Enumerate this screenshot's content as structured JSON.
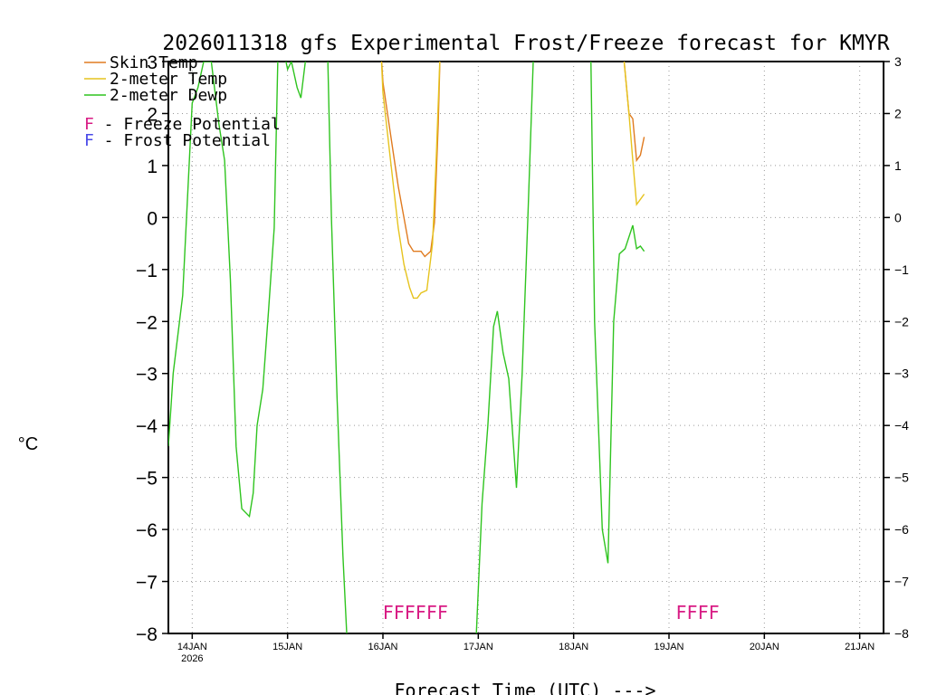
{
  "chart_data": {
    "type": "line",
    "title": "2026011318 gfs Experimental Frost/Freeze forecast for KMYR",
    "xlabel": "Forecast Time (UTC) --->",
    "ylabel_unit": "°C",
    "ylim": [
      -8,
      3
    ],
    "xlim": [
      -0.25,
      7.25
    ],
    "yticks": [
      "3",
      "2",
      "1",
      "0",
      "−1",
      "−2",
      "−3",
      "−4",
      "−5",
      "−6",
      "−7",
      "−8"
    ],
    "yticks_right": [
      "3",
      "2",
      "1",
      "0",
      "−1",
      "−2",
      "−3",
      "−4",
      "−5",
      "−6",
      "−7",
      "−8"
    ],
    "xtick_labels": [
      "14JAN",
      "15JAN",
      "16JAN",
      "17JAN",
      "18JAN",
      "19JAN",
      "20JAN",
      "21JAN"
    ],
    "xtick_year": "2026",
    "legend": [
      {
        "name": "Skin Temp",
        "color": "#e07b20"
      },
      {
        "name": "2-meter Temp",
        "color": "#e6c31e"
      },
      {
        "name": "2-meter Dewp",
        "color": "#2fc41f"
      }
    ],
    "flag_legend": [
      {
        "letter": "F",
        "text": " - Freeze Potential",
        "color": "#d81b84"
      },
      {
        "letter": "F",
        "text": " - Frost Potential",
        "color": "#4a4ae8"
      }
    ],
    "series": [
      {
        "name": "Skin Temp",
        "color": "#e07b20",
        "segments": [
          [
            [
              1.98,
              3.2
            ],
            [
              2.0,
              2.6
            ],
            [
              2.08,
              1.6
            ],
            [
              2.16,
              0.6
            ],
            [
              2.22,
              0.0
            ],
            [
              2.27,
              -0.5
            ],
            [
              2.32,
              -0.65
            ],
            [
              2.4,
              -0.65
            ],
            [
              2.44,
              -0.75
            ],
            [
              2.5,
              -0.65
            ],
            [
              2.54,
              -0.1
            ],
            [
              2.58,
              1.8
            ],
            [
              2.6,
              3.2
            ]
          ],
          [
            [
              4.52,
              3.2
            ],
            [
              4.58,
              2.0
            ],
            [
              4.62,
              1.9
            ],
            [
              4.66,
              1.1
            ],
            [
              4.7,
              1.2
            ],
            [
              4.74,
              1.55
            ]
          ]
        ]
      },
      {
        "name": "2-meter Temp",
        "color": "#e6c31e",
        "segments": [
          [
            [
              1.98,
              3.2
            ],
            [
              2.0,
              2.4
            ],
            [
              2.08,
              1.1
            ],
            [
              2.16,
              -0.2
            ],
            [
              2.22,
              -0.9
            ],
            [
              2.28,
              -1.35
            ],
            [
              2.32,
              -1.55
            ],
            [
              2.36,
              -1.55
            ],
            [
              2.4,
              -1.45
            ],
            [
              2.46,
              -1.4
            ],
            [
              2.52,
              -0.5
            ],
            [
              2.56,
              1.2
            ],
            [
              2.6,
              3.2
            ]
          ],
          [
            [
              4.52,
              3.2
            ],
            [
              4.58,
              2.0
            ],
            [
              4.62,
              1.1
            ],
            [
              4.66,
              0.25
            ],
            [
              4.7,
              0.35
            ],
            [
              4.74,
              0.45
            ]
          ]
        ]
      },
      {
        "name": "2-meter Dewp",
        "color": "#2fc41f",
        "segments": [
          [
            [
              -0.25,
              -4.4
            ],
            [
              -0.2,
              -3.0
            ],
            [
              -0.1,
              -1.5
            ],
            [
              0.0,
              2.2
            ],
            [
              0.06,
              2.5
            ],
            [
              0.12,
              3.0
            ],
            [
              0.2,
              3.0
            ],
            [
              0.28,
              1.8
            ],
            [
              0.34,
              1.1
            ],
            [
              0.4,
              -1.2
            ],
            [
              0.46,
              -4.4
            ],
            [
              0.52,
              -5.6
            ],
            [
              0.6,
              -5.75
            ],
            [
              0.64,
              -5.3
            ],
            [
              0.68,
              -4.0
            ],
            [
              0.74,
              -3.3
            ],
            [
              0.8,
              -1.8
            ],
            [
              0.86,
              -0.2
            ],
            [
              0.9,
              3.2
            ]
          ],
          [
            [
              0.96,
              3.2
            ],
            [
              1.0,
              2.85
            ],
            [
              1.04,
              3.0
            ],
            [
              1.1,
              2.5
            ],
            [
              1.14,
              2.3
            ],
            [
              1.2,
              3.2
            ]
          ],
          [
            [
              1.42,
              3.2
            ],
            [
              1.46,
              0.0
            ],
            [
              1.52,
              -3.5
            ],
            [
              1.58,
              -6.5
            ],
            [
              1.62,
              -8.0
            ]
          ],
          [
            [
              2.98,
              -8.0
            ],
            [
              3.04,
              -5.5
            ],
            [
              3.1,
              -4.0
            ],
            [
              3.16,
              -2.1
            ],
            [
              3.2,
              -1.8
            ],
            [
              3.26,
              -2.6
            ],
            [
              3.32,
              -3.1
            ],
            [
              3.4,
              -5.2
            ],
            [
              3.46,
              -3.0
            ],
            [
              3.52,
              0.0
            ],
            [
              3.58,
              3.2
            ]
          ],
          [
            [
              4.18,
              3.2
            ],
            [
              4.22,
              -2.0
            ],
            [
              4.3,
              -6.0
            ],
            [
              4.36,
              -6.65
            ],
            [
              4.42,
              -2.0
            ],
            [
              4.48,
              -0.7
            ],
            [
              4.54,
              -0.6
            ],
            [
              4.62,
              -0.15
            ],
            [
              4.66,
              -0.6
            ],
            [
              4.7,
              -0.55
            ],
            [
              4.74,
              -0.65
            ]
          ]
        ]
      }
    ],
    "flags": [
      {
        "text": "FFFFFF",
        "color": "#d81b84",
        "x": 2.34,
        "y": -7.55
      },
      {
        "text": "FFFF",
        "color": "#d81b84",
        "x": 5.3,
        "y": -7.55
      }
    ]
  }
}
